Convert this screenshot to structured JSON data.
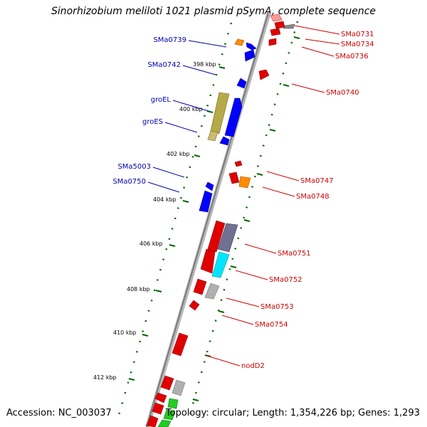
{
  "title": "Sinorhizobium meliloti 1021 plasmid pSymA, complete sequence",
  "footer": {
    "accession": "Accession: NC_003037",
    "topology": "Topology: circular; Length: 1,354,226 bp; Genes: 1,293"
  },
  "colors": {
    "backbone": "#999999",
    "forward_gene": "#e00000",
    "reverse_gene": "#0000ff",
    "orange_gene": "#ff8c00",
    "grey_gene": "#b0b0b0",
    "olive_gene": "#b5a94a",
    "cyan_gene": "#00e5ff",
    "green_gene": "#22cc22",
    "navy_gene": "#707090",
    "tick": "#006600",
    "left_label": "#0000aa",
    "right_label": "#cc0000"
  },
  "ticks": [
    {
      "id": "t398",
      "label": "398 kbp"
    },
    {
      "id": "t400",
      "label": "400 kbp"
    },
    {
      "id": "t402",
      "label": "402 kbp"
    },
    {
      "id": "t404",
      "label": "404 kbp"
    },
    {
      "id": "t406",
      "label": "406 kbp"
    },
    {
      "id": "t408",
      "label": "408 kbp"
    },
    {
      "id": "t410",
      "label": "410 kbp"
    },
    {
      "id": "t412",
      "label": "412 kbp"
    }
  ],
  "left_labels": [
    {
      "id": "SMa0739",
      "text": "SMa0739"
    },
    {
      "id": "SMa0742",
      "text": "SMa0742"
    },
    {
      "id": "groEL",
      "text": "groEL"
    },
    {
      "id": "groES",
      "text": "groES"
    },
    {
      "id": "SMa5003",
      "text": "SMa5003"
    },
    {
      "id": "SMa0750",
      "text": "SMa0750"
    }
  ],
  "right_labels": [
    {
      "id": "SMa0731",
      "text": "SMa0731"
    },
    {
      "id": "SMa0734",
      "text": "SMa0734"
    },
    {
      "id": "SMa0736",
      "text": "SMa0736"
    },
    {
      "id": "SMa0740",
      "text": "SMa0740"
    },
    {
      "id": "SMa0747",
      "text": "SMa0747"
    },
    {
      "id": "SMa0748",
      "text": "SMa0748"
    },
    {
      "id": "SMa0751",
      "text": "SMa0751"
    },
    {
      "id": "SMa0752",
      "text": "SMa0752"
    },
    {
      "id": "SMa0753",
      "text": "SMa0753"
    },
    {
      "id": "SMa0754",
      "text": "SMa0754"
    },
    {
      "id": "nodD2",
      "text": "nodD2"
    }
  ]
}
